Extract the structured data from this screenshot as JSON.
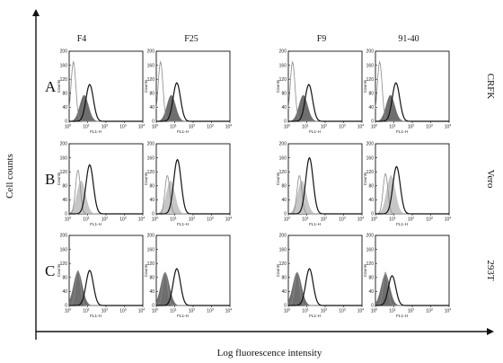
{
  "y_axis_label": "Cell counts",
  "x_axis_label": "Log fluorescence intensity",
  "column_titles": [
    "F4",
    "F25",
    "F9",
    "91-40"
  ],
  "row_letters": [
    "A",
    "B",
    "C"
  ],
  "cell_lines": [
    "CRFK",
    "Vero",
    "293T"
  ],
  "panel_xlabel": "FL1-H",
  "panel_ylabel": "Counts",
  "colors": {
    "filled_dark": "#6e6e6e",
    "filled_light": "#c6c6c6",
    "line": "#111111",
    "control_line": "#8a8a8a"
  },
  "chart_data": [
    {
      "type": "area",
      "layout": "grid of histogram panels, 3 rows x 4 columns",
      "x_scale": "log",
      "xlim": [
        1,
        10000
      ],
      "ylim": [
        0,
        200
      ],
      "x_ticks": [
        "10^0",
        "10^1",
        "10^2",
        "10^3",
        "10^4"
      ],
      "y_ticks": [
        "0",
        "40",
        "80",
        "120",
        "160",
        "200"
      ],
      "grid": false,
      "legend": "none",
      "columns": [
        "F4",
        "F25",
        "F9",
        "91-40"
      ],
      "rows": [
        {
          "letter": "A",
          "cell_line": "CRFK",
          "fill": "dark",
          "panels": [
            {
              "control": {
                "peak_x": 1.7,
                "peak_y": 170
              },
              "filled": {
                "peak_x": 6.5,
                "peak_y": 75
              },
              "stained": {
                "peak_x": 13,
                "peak_y": 105
              }
            },
            {
              "control": {
                "peak_x": 1.7,
                "peak_y": 170
              },
              "filled": {
                "peak_x": 6.5,
                "peak_y": 75
              },
              "stained": {
                "peak_x": 13,
                "peak_y": 110
              }
            },
            {
              "control": {
                "peak_x": 1.7,
                "peak_y": 170
              },
              "filled": {
                "peak_x": 6.5,
                "peak_y": 75
              },
              "stained": {
                "peak_x": 13,
                "peak_y": 105
              }
            },
            {
              "control": {
                "peak_x": 1.7,
                "peak_y": 170
              },
              "filled": {
                "peak_x": 6.5,
                "peak_y": 75
              },
              "stained": {
                "peak_x": 13,
                "peak_y": 110
              }
            }
          ]
        },
        {
          "letter": "B",
          "cell_line": "Vero",
          "fill": "light",
          "panels": [
            {
              "control": {
                "peak_x": 3,
                "peak_y": 125
              },
              "filled": {
                "peak_x": 4.5,
                "peak_y": 95
              },
              "stained": {
                "peak_x": 13,
                "peak_y": 140
              }
            },
            {
              "control": {
                "peak_x": 4,
                "peak_y": 110
              },
              "filled": {
                "peak_x": 6,
                "peak_y": 95
              },
              "stained": {
                "peak_x": 14,
                "peak_y": 155
              }
            },
            {
              "control": {
                "peak_x": 4,
                "peak_y": 110
              },
              "filled": {
                "peak_x": 5.5,
                "peak_y": 95
              },
              "stained": {
                "peak_x": 14,
                "peak_y": 160
              }
            },
            {
              "control": {
                "peak_x": 3.5,
                "peak_y": 115
              },
              "filled": {
                "peak_x": 7,
                "peak_y": 110
              },
              "stained": {
                "peak_x": 14,
                "peak_y": 135
              }
            }
          ]
        },
        {
          "letter": "C",
          "cell_line": "293T",
          "fill": "dark",
          "panels": [
            {
              "control": {
                "peak_x": 3,
                "peak_y": 100
              },
              "filled": {
                "peak_x": 3,
                "peak_y": 98
              },
              "stained": {
                "peak_x": 13,
                "peak_y": 100
              }
            },
            {
              "control": {
                "peak_x": 3,
                "peak_y": 95
              },
              "filled": {
                "peak_x": 3,
                "peak_y": 95
              },
              "stained": {
                "peak_x": 13,
                "peak_y": 105
              }
            },
            {
              "control": {
                "peak_x": 3,
                "peak_y": 95
              },
              "filled": {
                "peak_x": 3,
                "peak_y": 95
              },
              "stained": {
                "peak_x": 14,
                "peak_y": 105
              }
            },
            {
              "control": {
                "peak_x": 3.5,
                "peak_y": 95
              },
              "filled": {
                "peak_x": 3.5,
                "peak_y": 90
              },
              "stained": {
                "peak_x": 8,
                "peak_y": 85
              }
            }
          ]
        }
      ]
    }
  ]
}
